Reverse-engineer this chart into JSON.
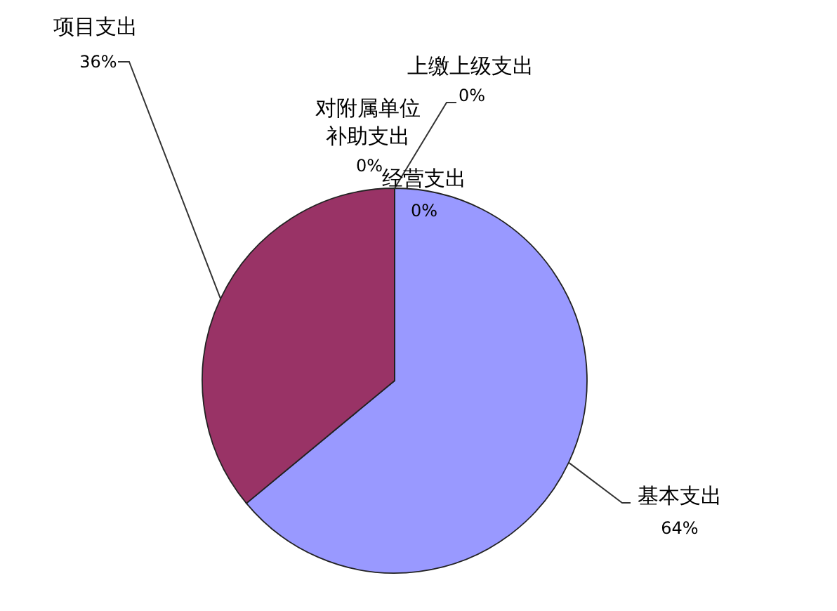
{
  "chart_data": {
    "type": "pie",
    "categories": [
      "基本支出",
      "项目支出",
      "上缴上级支出",
      "经营支出",
      "对附属单位补助支出"
    ],
    "values": [
      64,
      36,
      0,
      0,
      0
    ],
    "colors": [
      "#9999ff",
      "#993366",
      "#ffffcc",
      "#ccffff",
      "#660066"
    ],
    "value_labels": [
      "64%",
      "36%",
      "0%",
      "0%",
      "0%"
    ]
  }
}
